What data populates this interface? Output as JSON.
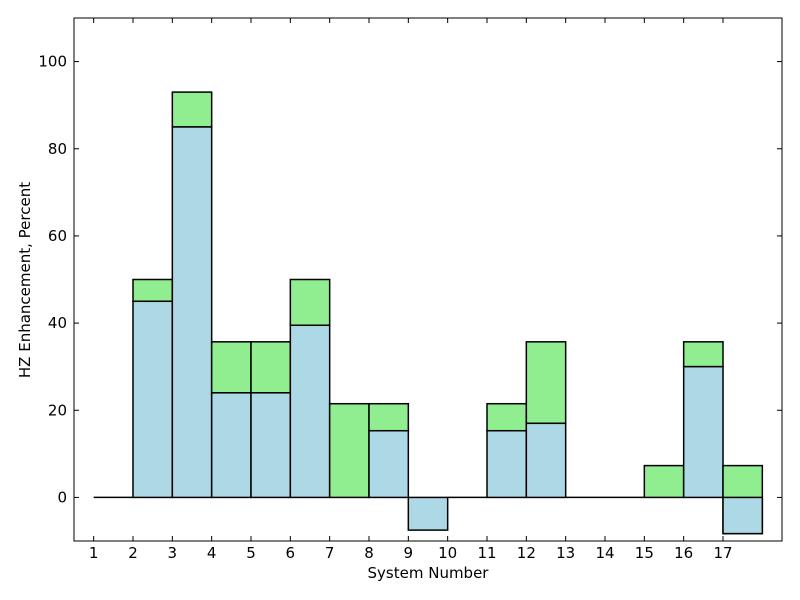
{
  "chart_data": {
    "type": "bar",
    "stacked": true,
    "title": "",
    "xlabel": "System Number",
    "ylabel": "HZ Enhancement, Percent",
    "x_ticks": [
      "1",
      "2",
      "3",
      "4",
      "5",
      "6",
      "7",
      "8",
      "9",
      "10",
      "11",
      "12",
      "13",
      "14",
      "15",
      "16",
      "17"
    ],
    "bars": [
      {
        "left": 1,
        "blue": 0,
        "total": 0
      },
      {
        "left": 2,
        "blue": 45,
        "total": 50
      },
      {
        "left": 3,
        "blue": 85,
        "total": 93
      },
      {
        "left": 4,
        "blue": 24,
        "total": 35.7
      },
      {
        "left": 5,
        "blue": 24,
        "total": 35.7
      },
      {
        "left": 6,
        "blue": 39.5,
        "total": 50
      },
      {
        "left": 7,
        "blue": 0,
        "total": 21.5
      },
      {
        "left": 8,
        "blue": 15.3,
        "total": 21.5
      },
      {
        "left": 9,
        "blue": -7.5,
        "total": -7.5
      },
      {
        "left": 10,
        "blue": 0,
        "total": 0
      },
      {
        "left": 11,
        "blue": 15.3,
        "total": 21.5
      },
      {
        "left": 12,
        "blue": 17,
        "total": 35.7
      },
      {
        "left": 13,
        "blue": 0,
        "total": 0
      },
      {
        "left": 14,
        "blue": 0,
        "total": 0
      },
      {
        "left": 15,
        "blue": 0,
        "total": 7.3
      },
      {
        "left": 16,
        "blue": 30,
        "total": 35.7
      },
      {
        "left": 17,
        "blue": -8.3,
        "total": 7.3
      }
    ],
    "xlim": [
      0.5,
      18.5
    ],
    "ylim": [
      -10,
      110
    ],
    "y_ticks": [
      0,
      20,
      40,
      60,
      80,
      100
    ],
    "grid": false,
    "colors": {
      "blue": "#add8e6",
      "green": "#90ee90",
      "edge": "#000000"
    }
  }
}
